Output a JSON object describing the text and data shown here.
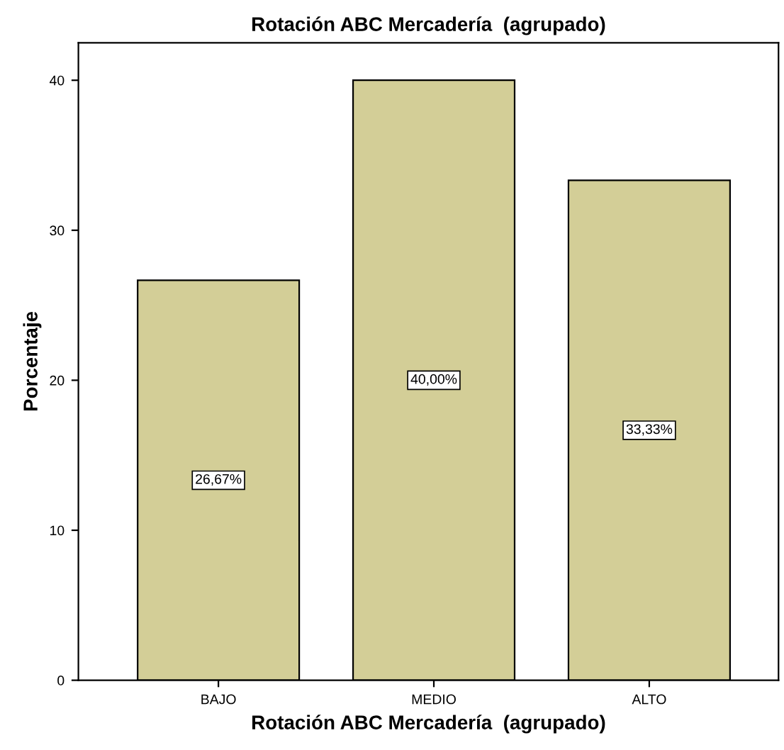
{
  "chart_data": {
    "type": "bar",
    "title": "Rotación ABC Mercadería  (agrupado)",
    "xlabel": "Rotación ABC Mercadería  (agrupado)",
    "ylabel": "Porcentaje",
    "categories": [
      "BAJO",
      "MEDIO",
      "ALTO"
    ],
    "values": [
      26.67,
      40.0,
      33.33
    ],
    "value_labels": [
      "26,67%",
      "40,00%",
      "33,33%"
    ],
    "color": "#d3ce97",
    "ylim": [
      0,
      42.5
    ],
    "yticks": [
      0,
      10,
      20,
      30,
      40
    ],
    "grid": false
  }
}
